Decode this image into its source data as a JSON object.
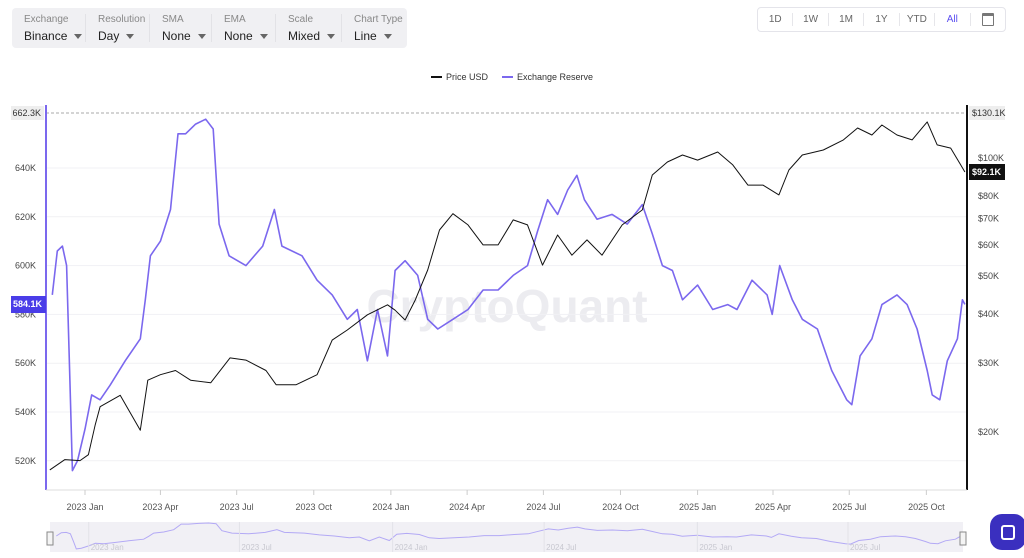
{
  "toolbar": [
    {
      "label": "Exchange",
      "value": "Binance"
    },
    {
      "label": "Resolution",
      "value": "Day"
    },
    {
      "label": "SMA",
      "value": "None"
    },
    {
      "label": "EMA",
      "value": "None"
    },
    {
      "label": "Scale",
      "value": "Mixed"
    },
    {
      "label": "Chart Type",
      "value": "Line"
    }
  ],
  "ranges": {
    "items": [
      "1D",
      "1W",
      "1M",
      "1Y",
      "YTD",
      "All"
    ],
    "active": "All",
    "calendar_icon": "calendar-icon"
  },
  "watermark": "CryptoQuant",
  "chat_icon": "chat-icon",
  "colors": {
    "reserve": "#7b68ee",
    "price": "#111111",
    "accent": "#4a3de8"
  },
  "chart_data": {
    "type": "line",
    "legend": [
      "Price USD",
      "Exchange Reserve"
    ],
    "legend_position": "top-center",
    "x_ticks": [
      "2023 Jan",
      "2023 Apr",
      "2023 Jul",
      "2023 Oct",
      "2024 Jan",
      "2024 Apr",
      "2024 Jul",
      "2024 Oct",
      "2025 Jan",
      "2025 Apr",
      "2025 Jul",
      "2025 Oct"
    ],
    "left_axis": {
      "ticks": [
        "640K",
        "620K",
        "600K",
        "580K",
        "560K",
        "540K",
        "520K"
      ],
      "tick_values": [
        640,
        620,
        600,
        580,
        560,
        540,
        520
      ],
      "max_label": "662.3K",
      "current_label": "584.1K",
      "unit": "K",
      "range": [
        507,
        662.3
      ]
    },
    "right_axis": {
      "scale": "log",
      "ticks": [
        "$100K",
        "$80K",
        "$70K",
        "$60K",
        "$50K",
        "$40K",
        "$30K",
        "$20K"
      ],
      "tick_values": [
        100,
        80,
        70,
        60,
        50,
        40,
        30,
        20
      ],
      "max_label": "$130.1K",
      "current_label": "$92.1K",
      "unit": "$K"
    },
    "navigator_labels": [
      "2023 Jan",
      "2023 Jul",
      "2024 Jan",
      "2024 Jul",
      "2025 Jan",
      "2025 Jul"
    ],
    "series": [
      {
        "name": "Exchange Reserve",
        "axis": "left",
        "points": [
          [
            "2022-11-23",
            588
          ],
          [
            "2022-11-29",
            606
          ],
          [
            "2022-12-05",
            608
          ],
          [
            "2022-12-10",
            600
          ],
          [
            "2022-12-14",
            553
          ],
          [
            "2022-12-17",
            516
          ],
          [
            "2022-12-23",
            520
          ],
          [
            "2023-01-01",
            533
          ],
          [
            "2023-01-09",
            547
          ],
          [
            "2023-01-19",
            545
          ],
          [
            "2023-01-31",
            551
          ],
          [
            "2023-02-18",
            561
          ],
          [
            "2023-03-08",
            570
          ],
          [
            "2023-03-14",
            586
          ],
          [
            "2023-03-20",
            604
          ],
          [
            "2023-04-01",
            610
          ],
          [
            "2023-04-13",
            623
          ],
          [
            "2023-04-22",
            654
          ],
          [
            "2023-05-01",
            654
          ],
          [
            "2023-05-13",
            658
          ],
          [
            "2023-05-25",
            660
          ],
          [
            "2023-06-03",
            656
          ],
          [
            "2023-06-10",
            617
          ],
          [
            "2023-06-22",
            604
          ],
          [
            "2023-07-12",
            600
          ],
          [
            "2023-08-01",
            608
          ],
          [
            "2023-08-15",
            623
          ],
          [
            "2023-08-24",
            608
          ],
          [
            "2023-09-17",
            604
          ],
          [
            "2023-10-05",
            594
          ],
          [
            "2023-10-23",
            588
          ],
          [
            "2023-11-10",
            578
          ],
          [
            "2023-11-22",
            582
          ],
          [
            "2023-12-04",
            561
          ],
          [
            "2023-12-16",
            582
          ],
          [
            "2023-12-28",
            563
          ],
          [
            "2024-01-06",
            598
          ],
          [
            "2024-01-18",
            602
          ],
          [
            "2024-02-02",
            596
          ],
          [
            "2024-02-14",
            578
          ],
          [
            "2024-02-26",
            574
          ],
          [
            "2024-03-15",
            578
          ],
          [
            "2024-04-02",
            582
          ],
          [
            "2024-04-20",
            590
          ],
          [
            "2024-05-08",
            590
          ],
          [
            "2024-05-26",
            596
          ],
          [
            "2024-06-12",
            600
          ],
          [
            "2024-06-24",
            614
          ],
          [
            "2024-07-06",
            627
          ],
          [
            "2024-07-18",
            621
          ],
          [
            "2024-07-30",
            631
          ],
          [
            "2024-08-10",
            637
          ],
          [
            "2024-08-19",
            627
          ],
          [
            "2024-09-03",
            619
          ],
          [
            "2024-09-21",
            621
          ],
          [
            "2024-10-09",
            617
          ],
          [
            "2024-10-27",
            625
          ],
          [
            "2024-11-08",
            613
          ],
          [
            "2024-11-20",
            600
          ],
          [
            "2024-12-02",
            598
          ],
          [
            "2024-12-14",
            586
          ],
          [
            "2025-01-01",
            592
          ],
          [
            "2025-01-19",
            582
          ],
          [
            "2025-02-06",
            584
          ],
          [
            "2025-02-17",
            582
          ],
          [
            "2025-03-07",
            594
          ],
          [
            "2025-03-25",
            588
          ],
          [
            "2025-03-31",
            580
          ],
          [
            "2025-04-09",
            600
          ],
          [
            "2025-04-24",
            586
          ],
          [
            "2025-05-06",
            578
          ],
          [
            "2025-05-24",
            574
          ],
          [
            "2025-06-10",
            557
          ],
          [
            "2025-06-28",
            545
          ],
          [
            "2025-07-04",
            543
          ],
          [
            "2025-07-14",
            563
          ],
          [
            "2025-07-28",
            570
          ],
          [
            "2025-08-09",
            584
          ],
          [
            "2025-08-27",
            588
          ],
          [
            "2025-09-08",
            584
          ],
          [
            "2025-09-20",
            574
          ],
          [
            "2025-10-02",
            557
          ],
          [
            "2025-10-08",
            547
          ],
          [
            "2025-10-17",
            545
          ],
          [
            "2025-10-26",
            561
          ],
          [
            "2025-11-07",
            570
          ],
          [
            "2025-11-13",
            586
          ],
          [
            "2025-11-16",
            584.1
          ]
        ]
      },
      {
        "name": "Price USD",
        "axis": "right",
        "points": [
          [
            "2022-11-20",
            16.0
          ],
          [
            "2022-12-08",
            17.0
          ],
          [
            "2022-12-26",
            16.9
          ],
          [
            "2023-01-05",
            17.5
          ],
          [
            "2023-01-13",
            20.8
          ],
          [
            "2023-01-19",
            23.2
          ],
          [
            "2023-02-12",
            24.8
          ],
          [
            "2023-03-08",
            20.2
          ],
          [
            "2023-03-17",
            27.1
          ],
          [
            "2023-04-01",
            28.0
          ],
          [
            "2023-04-19",
            28.7
          ],
          [
            "2023-05-07",
            27.1
          ],
          [
            "2023-05-31",
            26.7
          ],
          [
            "2023-06-23",
            30.9
          ],
          [
            "2023-07-12",
            30.5
          ],
          [
            "2023-08-05",
            28.7
          ],
          [
            "2023-08-17",
            26.4
          ],
          [
            "2023-09-10",
            26.4
          ],
          [
            "2023-10-05",
            28.0
          ],
          [
            "2023-10-23",
            34.3
          ],
          [
            "2023-11-10",
            36.4
          ],
          [
            "2023-12-04",
            39.8
          ],
          [
            "2023-12-28",
            42.2
          ],
          [
            "2024-01-06",
            40.9
          ],
          [
            "2024-01-18",
            38.6
          ],
          [
            "2024-01-30",
            43.4
          ],
          [
            "2024-02-14",
            51.8
          ],
          [
            "2024-02-28",
            65.5
          ],
          [
            "2024-03-15",
            72.1
          ],
          [
            "2024-04-02",
            67.5
          ],
          [
            "2024-04-20",
            60.0
          ],
          [
            "2024-05-08",
            60.0
          ],
          [
            "2024-05-26",
            69.5
          ],
          [
            "2024-06-12",
            67.5
          ],
          [
            "2024-06-30",
            53.3
          ],
          [
            "2024-07-18",
            63.6
          ],
          [
            "2024-08-04",
            56.5
          ],
          [
            "2024-08-22",
            61.8
          ],
          [
            "2024-09-09",
            56.5
          ],
          [
            "2024-10-03",
            67.5
          ],
          [
            "2024-10-27",
            73.7
          ],
          [
            "2024-11-08",
            90.5
          ],
          [
            "2024-11-26",
            97.7
          ],
          [
            "2024-12-14",
            101.8
          ],
          [
            "2025-01-01",
            98.8
          ],
          [
            "2025-01-25",
            103.6
          ],
          [
            "2025-02-12",
            96.0
          ],
          [
            "2025-03-02",
            85.3
          ],
          [
            "2025-03-20",
            85.3
          ],
          [
            "2025-04-08",
            80.5
          ],
          [
            "2025-04-20",
            93.2
          ],
          [
            "2025-05-06",
            101.8
          ],
          [
            "2025-05-31",
            104.8
          ],
          [
            "2025-06-24",
            111.2
          ],
          [
            "2025-07-11",
            119.3
          ],
          [
            "2025-07-28",
            114.5
          ],
          [
            "2025-08-09",
            121.4
          ],
          [
            "2025-08-27",
            114.5
          ],
          [
            "2025-09-14",
            111.2
          ],
          [
            "2025-10-02",
            123.6
          ],
          [
            "2025-10-14",
            108.0
          ],
          [
            "2025-10-30",
            106.0
          ],
          [
            "2025-11-11",
            96.0
          ],
          [
            "2025-11-16",
            92.1
          ]
        ]
      }
    ]
  }
}
